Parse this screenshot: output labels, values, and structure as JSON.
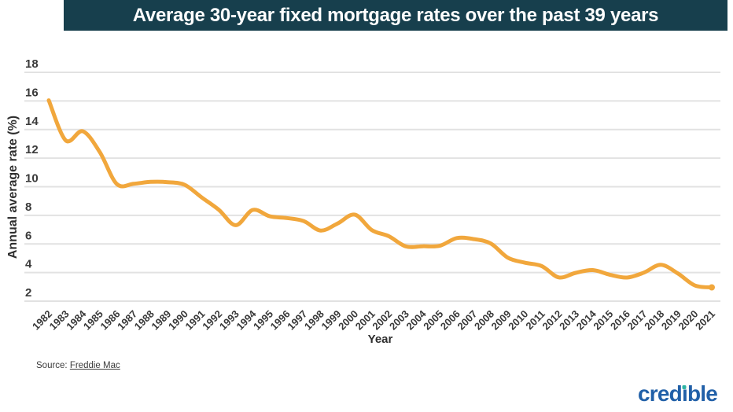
{
  "header": {
    "title": "Average 30-year fixed mortgage rates over the past 39 years",
    "bg_color": "#173f4d",
    "text_color": "#ffffff"
  },
  "chart_data": {
    "type": "line",
    "title": "Average 30-year fixed mortgage rates over the past 39 years",
    "xlabel": "Year",
    "ylabel": "Annual average rate (%)",
    "x": [
      1982,
      1983,
      1984,
      1985,
      1986,
      1987,
      1988,
      1989,
      1990,
      1991,
      1992,
      1993,
      1994,
      1995,
      1996,
      1997,
      1998,
      1999,
      2000,
      2001,
      2002,
      2003,
      2004,
      2005,
      2006,
      2007,
      2008,
      2009,
      2010,
      2011,
      2012,
      2013,
      2014,
      2015,
      2016,
      2017,
      2018,
      2019,
      2020,
      2021
    ],
    "values": [
      16.04,
      13.24,
      13.88,
      12.43,
      10.19,
      10.21,
      10.34,
      10.32,
      10.13,
      9.25,
      8.39,
      7.31,
      8.38,
      7.93,
      7.81,
      7.6,
      6.94,
      7.44,
      8.05,
      6.97,
      6.54,
      5.83,
      5.84,
      5.87,
      6.41,
      6.34,
      6.03,
      5.04,
      4.69,
      4.45,
      3.66,
      3.98,
      4.17,
      3.85,
      3.65,
      3.99,
      4.54,
      3.94,
      3.1,
      2.96
    ],
    "ylim": [
      2,
      18
    ],
    "yticks": [
      18,
      16,
      14,
      12,
      10,
      8,
      6,
      4,
      2
    ],
    "grid": true,
    "legend": false,
    "smooth": true,
    "line_color": "#F1A73C",
    "grid_color": "#e2e2e2",
    "tick_color": "#3a3a3a"
  },
  "footer": {
    "source_prefix": "Source: ",
    "source_link": "Freddie Mac",
    "logo": {
      "part1": "cred",
      "i": "ı",
      "part2": "ble",
      "color": "#2160a8",
      "dot_color": "#2fb5a5"
    }
  }
}
